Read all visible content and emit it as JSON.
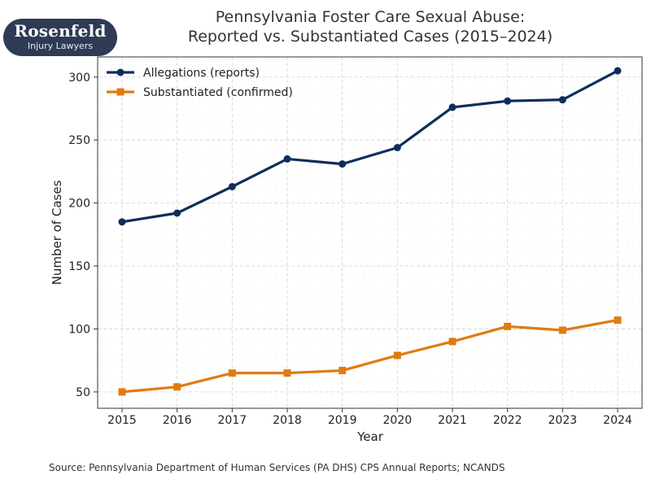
{
  "brand": {
    "name": "Rosenfeld",
    "tagline": "Injury Lawyers"
  },
  "source_note": "Source: Pennsylvania Department of Human Services (PA DHS) CPS Annual Reports; NCANDS",
  "chart_data": {
    "type": "line",
    "title_lines": [
      "Pennsylvania Foster Care Sexual Abuse:",
      "Reported vs. Substantiated Cases (2015–2024)"
    ],
    "xlabel": "Year",
    "ylabel": "Number of Cases",
    "x": [
      2015,
      2016,
      2017,
      2018,
      2019,
      2020,
      2021,
      2022,
      2023,
      2024
    ],
    "xticks": [
      "2015",
      "2016",
      "2017",
      "2018",
      "2019",
      "2020",
      "2021",
      "2022",
      "2023",
      "2024"
    ],
    "yticks": [
      50,
      100,
      150,
      200,
      250,
      300
    ],
    "ylim": [
      37,
      316
    ],
    "grid": true,
    "legend_position": "top-left",
    "series": [
      {
        "name": "Allegations (reports)",
        "color": "#0d2e5c",
        "marker": "circle",
        "values": [
          185,
          192,
          213,
          235,
          231,
          244,
          276,
          281,
          282,
          305
        ]
      },
      {
        "name": "Substantiated (confirmed)",
        "color": "#e07b10",
        "marker": "square",
        "values": [
          50,
          54,
          65,
          65,
          67,
          79,
          90,
          102,
          99,
          107
        ]
      }
    ]
  }
}
